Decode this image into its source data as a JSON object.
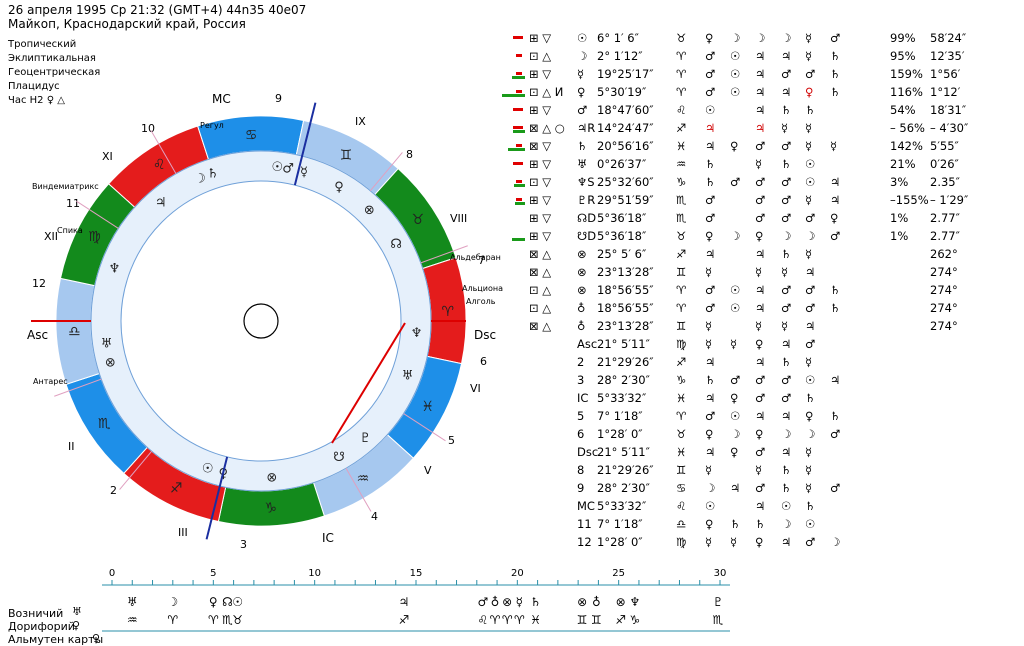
{
  "header": {
    "line1": "26 апреля 1995  Ср  21:32 (GMT+4) 44n35  40e07",
    "line2": "Майкоп, Краснодарский край, Россия"
  },
  "settings": [
    "Тропический",
    "Эклиптикальная",
    "Геоцентрическая",
    "Плацидус",
    "Час H2 ♀ △"
  ],
  "wheel": {
    "angles": {
      "mc": "MC",
      "ic": "IC",
      "asc": "Asc",
      "dsc": "Dsc"
    },
    "house_numbers": [
      {
        "n": "9"
      },
      {
        "n": "IX"
      },
      {
        "n": "8"
      },
      {
        "n": "VIII"
      },
      {
        "n": "7"
      },
      {
        "n": "6"
      },
      {
        "n": "VI"
      },
      {
        "n": "5"
      },
      {
        "n": "V"
      },
      {
        "n": "4"
      },
      {
        "n": "IC"
      },
      {
        "n": "3"
      },
      {
        "n": "III"
      },
      {
        "n": "2"
      },
      {
        "n": "II"
      },
      {
        "n": "12"
      },
      {
        "n": "XII"
      },
      {
        "n": "11"
      },
      {
        "n": "XI"
      },
      {
        "n": "10"
      }
    ],
    "stars": [
      "Регул",
      "Виндемиатрикс",
      "Спика",
      "Альдебаран",
      "Альциона",
      "Алголь",
      "Антарес"
    ],
    "sign_segments": [
      {
        "sign": "♌",
        "color": "#e41c1c"
      },
      {
        "sign": "♋",
        "color": "#1e8fe8"
      },
      {
        "sign": "♊",
        "color": "#a6c8ef"
      },
      {
        "sign": "♉",
        "color": "#138a1c"
      },
      {
        "sign": "♈",
        "color": "#e41c1c"
      },
      {
        "sign": "♓",
        "color": "#1e8fe8"
      },
      {
        "sign": "♒",
        "color": "#a6c8ef"
      },
      {
        "sign": "♑",
        "color": "#138a1c"
      },
      {
        "sign": "♐",
        "color": "#e41c1c"
      },
      {
        "sign": "♏",
        "color": "#1e8fe8"
      },
      {
        "sign": "♎",
        "color": "#a6c8ef"
      },
      {
        "sign": "♍",
        "color": "#138a1c"
      }
    ],
    "planets": [
      {
        "g": "☉"
      },
      {
        "g": "♂"
      },
      {
        "g": "☿"
      },
      {
        "g": "♃"
      },
      {
        "g": "☽"
      },
      {
        "g": "♄"
      },
      {
        "g": "♀"
      },
      {
        "g": "⊗"
      },
      {
        "g": "☊"
      },
      {
        "g": "♆"
      },
      {
        "g": "♅"
      },
      {
        "g": "♇"
      },
      {
        "g": "☋"
      },
      {
        "g": "⊗"
      },
      {
        "g": "♀"
      },
      {
        "g": "☉"
      },
      {
        "g": "⊗"
      },
      {
        "g": "♅"
      },
      {
        "g": "♆"
      }
    ]
  },
  "table": {
    "rows": [
      {
        "p": "☉",
        "r": "",
        "pos": "6° 1′ 6″",
        "s": "♉",
        "c": [
          "♀",
          "☽",
          "☽",
          "☽",
          "☿",
          "♂"
        ],
        "pct": "99%",
        "v": "58′24″",
        "g": 0,
        "rd": 2,
        "m": "⊞ ▽"
      },
      {
        "p": "☽",
        "r": "",
        "pos": "2° 1′12″",
        "s": "♈",
        "c": [
          "♂",
          "☉",
          "♃",
          "♃",
          "☿",
          "♄"
        ],
        "pct": "95%",
        "v": "12′35′",
        "g": 0,
        "rd": 1,
        "m": "⊡ △"
      },
      {
        "p": "☿",
        "r": "",
        "pos": "19°25′17″",
        "s": "♈",
        "c": [
          "♂",
          "☉",
          "♃",
          "♂",
          "♂",
          "♄"
        ],
        "pct": "159%",
        "v": "1°56′",
        "g": 20,
        "rd": 1,
        "m": "⊞ ▽"
      },
      {
        "p": "♀",
        "r": "",
        "pos": "5°30′19″",
        "s": "♈",
        "c": [
          "♂",
          "☉",
          "♃",
          "♃",
          "♀",
          "♄"
        ],
        "pct": "116%",
        "v": "1°12′",
        "g": 46,
        "rd": 1,
        "m": "⊡ △ И"
      },
      {
        "p": "♂",
        "r": "",
        "pos": "18°47′60″",
        "s": "♌",
        "c": [
          "☉",
          "",
          "♃",
          "♄",
          "♄",
          ""
        ],
        "pct": "54%",
        "v": "18′31″",
        "g": 0,
        "rd": 2,
        "m": "⊞ ▽"
      },
      {
        "p": "♃",
        "r": "R",
        "pos": "14°24′47″",
        "s": "♐",
        "c": [
          "♃",
          "",
          "♃",
          "☿",
          "☿",
          ""
        ],
        "pct": "– 56%",
        "v": "– 4′30″",
        "g": 18,
        "rd": 2,
        "m": "⊠ △ ○"
      },
      {
        "p": "♄",
        "r": "",
        "pos": "20°56′16″",
        "s": "♓",
        "c": [
          "♃",
          "♀",
          "♂",
          "♂",
          "☿",
          "☿"
        ],
        "pct": "142%",
        "v": "5′55″",
        "g": 30,
        "rd": 1,
        "m": "⊠ ▽"
      },
      {
        "p": "♅",
        "r": "",
        "pos": "0°26′37″",
        "s": "♒",
        "c": [
          "♄",
          "",
          "☿",
          "♄",
          "☉",
          ""
        ],
        "pct": "21%",
        "v": "0′26″",
        "g": 0,
        "rd": 2,
        "m": "⊞ ▽"
      },
      {
        "p": "♆",
        "r": "S",
        "pos": "25°32′60″",
        "s": "♑",
        "c": [
          "♄",
          "♂",
          "♂",
          "♂",
          "☉",
          "♃"
        ],
        "pct": "3%",
        "v": "2.35″",
        "g": 14,
        "rd": 1,
        "m": "⊡ ▽"
      },
      {
        "p": "♇",
        "r": "R",
        "pos": "29°51′59″",
        "s": "♏",
        "c": [
          "♂",
          "",
          "♂",
          "♂",
          "☿",
          "♃"
        ],
        "pct": "–155%",
        "v": "– 1′29″",
        "g": 12,
        "rd": 1,
        "m": "⊞ ▽"
      },
      {
        "p": "☊",
        "r": "D",
        "pos": "5°36′18″",
        "s": "♏",
        "c": [
          "♂",
          "",
          "♂",
          "♂",
          "♂",
          "♀"
        ],
        "pct": "1%",
        "v": "2.77″",
        "g": 0,
        "rd": 0,
        "m": "⊞ ▽"
      },
      {
        "p": "☋",
        "r": "D",
        "pos": "5°36′18″",
        "s": "♉",
        "c": [
          "♀",
          "☽",
          "♀",
          "☽",
          "☽",
          "♂"
        ],
        "pct": "1%",
        "v": "2.77″",
        "g": 20,
        "rd": 0,
        "m": "⊞ ▽"
      },
      {
        "p": "⊗",
        "r": "",
        "pos": "25° 5′ 6″",
        "s": "♐",
        "c": [
          "♃",
          "",
          "♃",
          "♄",
          "☿",
          ""
        ],
        "pct": "",
        "v": "262°",
        "g": 0,
        "rd": 0,
        "m": "⊠ △"
      },
      {
        "p": "⊗",
        "r": "",
        "pos": "23°13′28″",
        "s": "♊",
        "c": [
          "☿",
          "",
          "☿",
          "☿",
          "♃",
          ""
        ],
        "pct": "",
        "v": "274°",
        "g": 0,
        "rd": 0,
        "m": "⊠ △"
      },
      {
        "p": "⊗",
        "r": "",
        "pos": "18°56′55″",
        "s": "♈",
        "c": [
          "♂",
          "☉",
          "♃",
          "♂",
          "♂",
          "♄"
        ],
        "pct": "",
        "v": "274°",
        "g": 0,
        "rd": 0,
        "m": "⊡ △"
      },
      {
        "p": "♁",
        "r": "",
        "pos": "18°56′55″",
        "s": "♈",
        "c": [
          "♂",
          "☉",
          "♃",
          "♂",
          "♂",
          "♄"
        ],
        "pct": "",
        "v": "274°",
        "g": 0,
        "rd": 0,
        "m": "⊡ △"
      },
      {
        "p": "♁",
        "r": "",
        "pos": "23°13′28″",
        "s": "♊",
        "c": [
          "☿",
          "",
          "☿",
          "☿",
          "♃",
          ""
        ],
        "pct": "",
        "v": "274°",
        "g": 0,
        "rd": 0,
        "m": "⊠ △"
      },
      {
        "p": "Asc",
        "r": "",
        "pos": "21° 5′11″",
        "s": "♍",
        "c": [
          "☿",
          "☿",
          "♀",
          "♃",
          "♂",
          ""
        ],
        "pct": "",
        "v": "",
        "g": 0,
        "rd": 0,
        "m": ""
      },
      {
        "p": "2",
        "r": "",
        "pos": "21°29′26″",
        "s": "♐",
        "c": [
          "♃",
          "",
          "♃",
          "♄",
          "☿",
          ""
        ],
        "pct": "",
        "v": "",
        "g": 0,
        "rd": 0,
        "m": ""
      },
      {
        "p": "3",
        "r": "",
        "pos": "28° 2′30″",
        "s": "♑",
        "c": [
          "♄",
          "♂",
          "♂",
          "♂",
          "☉",
          "♃"
        ],
        "pct": "",
        "v": "",
        "g": 0,
        "rd": 0,
        "m": ""
      },
      {
        "p": "IC",
        "r": "",
        "pos": "5°33′32″",
        "s": "♓",
        "c": [
          "♃",
          "♀",
          "♂",
          "♂",
          "♄",
          ""
        ],
        "pct": "",
        "v": "",
        "g": 0,
        "rd": 0,
        "m": ""
      },
      {
        "p": "5",
        "r": "",
        "pos": "7° 1′18″",
        "s": "♈",
        "c": [
          "♂",
          "☉",
          "♃",
          "♃",
          "♀",
          "♄"
        ],
        "pct": "",
        "v": "",
        "g": 0,
        "rd": 0,
        "m": ""
      },
      {
        "p": "6",
        "r": "",
        "pos": "1°28′ 0″",
        "s": "♉",
        "c": [
          "♀",
          "☽",
          "♀",
          "☽",
          "☽",
          "♂"
        ],
        "pct": "",
        "v": "",
        "g": 0,
        "rd": 0,
        "m": ""
      },
      {
        "p": "Dsc",
        "r": "",
        "pos": "21° 5′11″",
        "s": "♓",
        "c": [
          "♃",
          "♀",
          "♂",
          "♃",
          "☿",
          ""
        ],
        "pct": "",
        "v": "",
        "g": 0,
        "rd": 0,
        "m": ""
      },
      {
        "p": "8",
        "r": "",
        "pos": "21°29′26″",
        "s": "♊",
        "c": [
          "☿",
          "",
          "☿",
          "♄",
          "☿",
          ""
        ],
        "pct": "",
        "v": "",
        "g": 0,
        "rd": 0,
        "m": ""
      },
      {
        "p": "9",
        "r": "",
        "pos": "28° 2′30″",
        "s": "♋",
        "c": [
          "☽",
          "♃",
          "♂",
          "♄",
          "☿",
          "♂"
        ],
        "pct": "",
        "v": "",
        "g": 0,
        "rd": 0,
        "m": ""
      },
      {
        "p": "MC",
        "r": "",
        "pos": "5°33′32″",
        "s": "♌",
        "c": [
          "☉",
          "",
          "♃",
          "☉",
          "♄",
          ""
        ],
        "pct": "",
        "v": "",
        "g": 0,
        "rd": 0,
        "m": ""
      },
      {
        "p": "11",
        "r": "",
        "pos": "7° 1′18″",
        "s": "♎",
        "c": [
          "♀",
          "♄",
          "♄",
          "☽",
          "☉",
          ""
        ],
        "pct": "",
        "v": "",
        "g": 0,
        "rd": 0,
        "m": ""
      },
      {
        "p": "12",
        "r": "",
        "pos": "1°28′ 0″",
        "s": "♍",
        "c": [
          "☿",
          "☿",
          "♀",
          "♃",
          "♂",
          "☽"
        ],
        "pct": "",
        "v": "",
        "g": 0,
        "rd": 0,
        "m": ""
      }
    ]
  },
  "scale": {
    "ticks": [
      "0",
      "5",
      "10",
      "15",
      "20",
      "25",
      "30"
    ],
    "labels": {
      "driver": "Возничий",
      "doryphor": "Дорифорий",
      "almuten": "Альмутен карты"
    },
    "driver_glyph": "♅",
    "doryphor_glyph": "♀",
    "almuten_glyph": "♀",
    "row1": [
      {
        "x": 1,
        "g": "♅"
      },
      {
        "x": 3,
        "g": "☽"
      },
      {
        "x": 5,
        "g": "♀"
      },
      {
        "x": 5.7,
        "g": "☊"
      },
      {
        "x": 6.2,
        "g": "☉"
      },
      {
        "x": 14.4,
        "g": "♃"
      },
      {
        "x": 18.3,
        "g": "♂"
      },
      {
        "x": 18.9,
        "g": "♁"
      },
      {
        "x": 19.5,
        "g": "⊗"
      },
      {
        "x": 20.1,
        "g": "☿"
      },
      {
        "x": 20.9,
        "g": "♄"
      },
      {
        "x": 23.2,
        "g": "⊗"
      },
      {
        "x": 23.9,
        "g": "♁"
      },
      {
        "x": 25.1,
        "g": "⊗"
      },
      {
        "x": 25.8,
        "g": "♆"
      },
      {
        "x": 29.9,
        "g": "♇"
      }
    ],
    "row2": [
      {
        "x": 1,
        "g": "♒"
      },
      {
        "x": 3,
        "g": "♈"
      },
      {
        "x": 5,
        "g": "♈"
      },
      {
        "x": 5.7,
        "g": "♏"
      },
      {
        "x": 6.2,
        "g": "♉"
      },
      {
        "x": 14.4,
        "g": "♐"
      },
      {
        "x": 18.3,
        "g": "♌"
      },
      {
        "x": 18.9,
        "g": "♈"
      },
      {
        "x": 19.5,
        "g": "♈"
      },
      {
        "x": 20.1,
        "g": "♈"
      },
      {
        "x": 20.9,
        "g": "♓"
      },
      {
        "x": 23.2,
        "g": "♊"
      },
      {
        "x": 23.9,
        "g": "♊"
      },
      {
        "x": 25.1,
        "g": "♐"
      },
      {
        "x": 25.8,
        "g": "♑"
      },
      {
        "x": 29.9,
        "g": "♏"
      }
    ]
  }
}
